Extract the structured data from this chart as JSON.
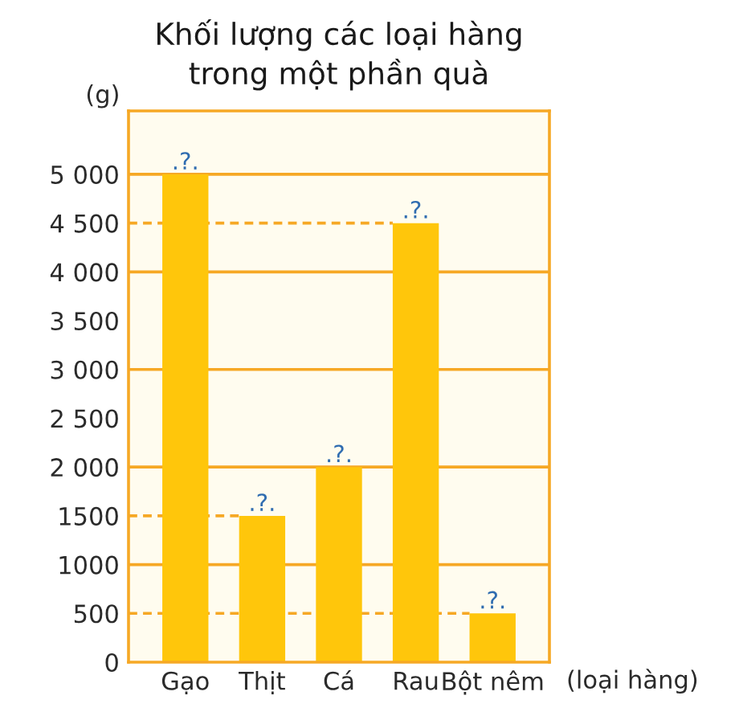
{
  "chart_data": {
    "type": "bar",
    "title": "Khối lượng các loại hàng\ntrong một phần quà",
    "ylabel": "(g)",
    "xlabel": "(loại hàng)",
    "categories": [
      "Gạo",
      "Thịt",
      "Cá",
      "Rau",
      "Bột nêm"
    ],
    "values": [
      5000,
      1500,
      2000,
      4500,
      500
    ],
    "color": "#ffc60b",
    "value_labels": [
      ".?.",
      ".?.",
      ".?.",
      ".?.",
      ".?."
    ],
    "ylim": [
      0,
      5650
    ],
    "yticks": [
      0,
      500,
      1000,
      1500,
      {
        "value": 2000,
        "label": "2 000"
      },
      {
        "value": 2500,
        "label": "2 500"
      },
      {
        "value": 3000,
        "label": "3 000"
      },
      {
        "value": 3500,
        "label": "3 500"
      },
      {
        "value": 4000,
        "label": "4 000"
      },
      {
        "value": 4500,
        "label": "4 500"
      },
      {
        "value": 5000,
        "label": "5 000"
      }
    ],
    "ref_lines": [
      {
        "axis": "y",
        "value": 1000,
        "color": "#f6a825",
        "line_style": "solid"
      },
      {
        "axis": "y",
        "value": 2000,
        "color": "#f6a825",
        "line_style": "solid"
      },
      {
        "axis": "y",
        "value": 3000,
        "color": "#f6a825",
        "line_style": "solid"
      },
      {
        "axis": "y",
        "value": 4000,
        "color": "#f6a825",
        "line_style": "solid"
      },
      {
        "axis": "y",
        "value": 5000,
        "color": "#f6a825",
        "line_style": "solid"
      },
      {
        "axis": "y",
        "value": 500,
        "color": "#f6a825",
        "line_style": "dashed"
      },
      {
        "axis": "y",
        "value": 1500,
        "color": "#f6a825",
        "line_style": "dashed"
      },
      {
        "axis": "y",
        "value": 4500,
        "color": "#f6a825",
        "line_style": "dashed"
      }
    ]
  }
}
